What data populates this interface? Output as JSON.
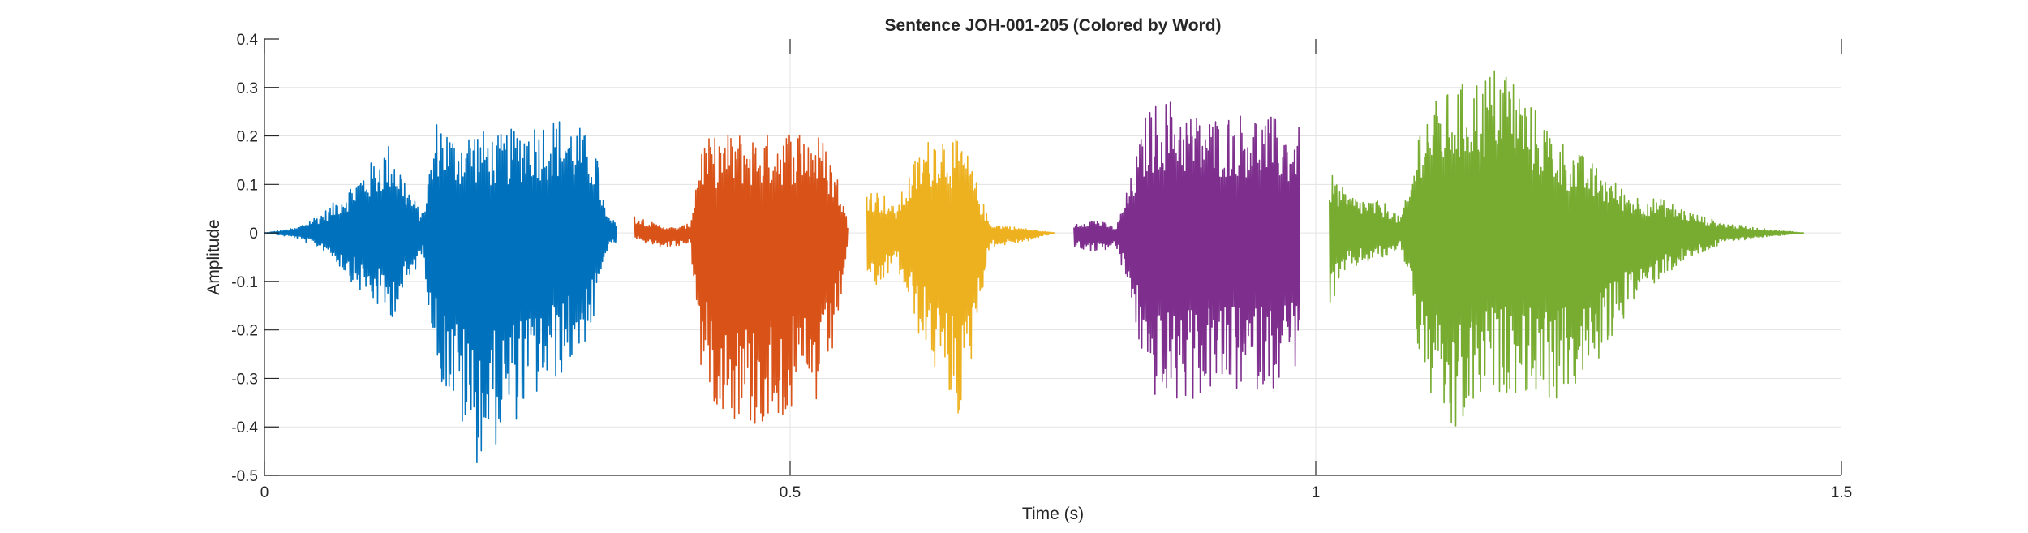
{
  "chart_data": {
    "type": "line",
    "title": "Sentence JOH-001-205 (Colored by Word)",
    "xlabel": "Time (s)",
    "ylabel": "Amplitude",
    "xlim": [
      0,
      1.5
    ],
    "ylim": [
      -0.5,
      0.4
    ],
    "xticks": [
      0,
      0.5,
      1,
      1.5
    ],
    "xtick_labels": [
      "0",
      "0.5",
      "1",
      "1.5"
    ],
    "yticks": [
      -0.5,
      -0.4,
      -0.3,
      -0.2,
      -0.1,
      0,
      0.1,
      0.2,
      0.3,
      0.4
    ],
    "ytick_labels": [
      "-0.5",
      "-0.4",
      "-0.3",
      "-0.2",
      "-0.1",
      "0",
      "0.1",
      "0.2",
      "0.3",
      "0.4"
    ],
    "grid": true,
    "series": [
      {
        "color": "#0072BD",
        "t_start": 0.0,
        "t_end": 0.335,
        "envelope": [
          [
            0.0,
            0.0,
            0.0
          ],
          [
            0.03,
            0.01,
            -0.01
          ],
          [
            0.06,
            0.05,
            -0.04
          ],
          [
            0.09,
            0.12,
            -0.12
          ],
          [
            0.12,
            0.19,
            -0.18
          ],
          [
            0.14,
            0.08,
            -0.1
          ],
          [
            0.15,
            0.04,
            -0.04
          ],
          [
            0.165,
            0.25,
            -0.3
          ],
          [
            0.18,
            0.2,
            -0.36
          ],
          [
            0.2,
            0.22,
            -0.48
          ],
          [
            0.22,
            0.2,
            -0.44
          ],
          [
            0.25,
            0.23,
            -0.36
          ],
          [
            0.28,
            0.24,
            -0.3
          ],
          [
            0.3,
            0.22,
            -0.25
          ],
          [
            0.315,
            0.18,
            -0.18
          ],
          [
            0.325,
            0.04,
            -0.04
          ],
          [
            0.335,
            0.02,
            -0.02
          ]
        ]
      },
      {
        "color": "#D95319",
        "t_start": 0.352,
        "t_end": 0.555,
        "envelope": [
          [
            0.352,
            0.04,
            -0.01
          ],
          [
            0.37,
            0.02,
            -0.03
          ],
          [
            0.39,
            0.01,
            -0.03
          ],
          [
            0.405,
            0.02,
            -0.02
          ],
          [
            0.415,
            0.19,
            -0.28
          ],
          [
            0.43,
            0.2,
            -0.36
          ],
          [
            0.45,
            0.21,
            -0.39
          ],
          [
            0.47,
            0.2,
            -0.41
          ],
          [
            0.49,
            0.21,
            -0.38
          ],
          [
            0.51,
            0.22,
            -0.38
          ],
          [
            0.53,
            0.2,
            -0.36
          ],
          [
            0.545,
            0.12,
            -0.2
          ],
          [
            0.555,
            0.02,
            -0.02
          ]
        ]
      },
      {
        "color": "#EDB120",
        "t_start": 0.573,
        "t_end": 0.752,
        "envelope": [
          [
            0.573,
            0.1,
            -0.15
          ],
          [
            0.59,
            0.08,
            -0.1
          ],
          [
            0.6,
            0.05,
            -0.06
          ],
          [
            0.62,
            0.16,
            -0.2
          ],
          [
            0.64,
            0.22,
            -0.3
          ],
          [
            0.66,
            0.19,
            -0.38
          ],
          [
            0.665,
            0.19,
            -0.4
          ],
          [
            0.675,
            0.12,
            -0.22
          ],
          [
            0.69,
            0.02,
            -0.03
          ],
          [
            0.72,
            0.01,
            -0.02
          ],
          [
            0.752,
            0.0,
            0.0
          ]
        ]
      },
      {
        "color": "#7E2F8E",
        "t_start": 0.77,
        "t_end": 0.985,
        "envelope": [
          [
            0.77,
            0.02,
            -0.03
          ],
          [
            0.79,
            0.03,
            -0.04
          ],
          [
            0.81,
            0.01,
            -0.03
          ],
          [
            0.825,
            0.12,
            -0.15
          ],
          [
            0.84,
            0.26,
            -0.33
          ],
          [
            0.86,
            0.28,
            -0.36
          ],
          [
            0.88,
            0.25,
            -0.35
          ],
          [
            0.9,
            0.24,
            -0.33
          ],
          [
            0.93,
            0.25,
            -0.33
          ],
          [
            0.96,
            0.24,
            -0.32
          ],
          [
            0.975,
            0.21,
            -0.28
          ],
          [
            0.985,
            0.22,
            -0.28
          ]
        ]
      },
      {
        "color": "#77AC30",
        "t_start": 1.013,
        "t_end": 1.465,
        "envelope": [
          [
            1.013,
            0.13,
            -0.16
          ],
          [
            1.03,
            0.08,
            -0.08
          ],
          [
            1.05,
            0.07,
            -0.06
          ],
          [
            1.07,
            0.06,
            -0.05
          ],
          [
            1.08,
            0.03,
            -0.03
          ],
          [
            1.09,
            0.1,
            -0.1
          ],
          [
            1.1,
            0.25,
            -0.3
          ],
          [
            1.13,
            0.3,
            -0.44
          ],
          [
            1.16,
            0.33,
            -0.34
          ],
          [
            1.18,
            0.36,
            -0.33
          ],
          [
            1.2,
            0.28,
            -0.33
          ],
          [
            1.23,
            0.2,
            -0.35
          ],
          [
            1.26,
            0.15,
            -0.3
          ],
          [
            1.3,
            0.08,
            -0.15
          ],
          [
            1.33,
            0.07,
            -0.09
          ],
          [
            1.36,
            0.04,
            -0.05
          ],
          [
            1.39,
            0.02,
            -0.02
          ],
          [
            1.42,
            0.01,
            -0.01
          ],
          [
            1.465,
            0.0,
            0.0
          ]
        ]
      }
    ]
  }
}
